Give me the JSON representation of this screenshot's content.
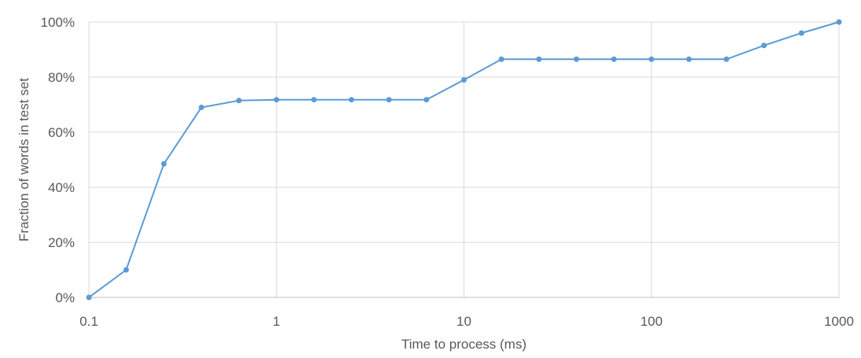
{
  "chart_data": {
    "type": "line",
    "xlabel": "Time to process (ms)",
    "ylabel": "Fraction of words in test set",
    "x_scale": "log",
    "xlim": [
      0.1,
      1000
    ],
    "ylim": [
      0,
      1
    ],
    "x_ticks": [
      {
        "value": 0.1,
        "label": "0.1"
      },
      {
        "value": 1,
        "label": "1"
      },
      {
        "value": 10,
        "label": "10"
      },
      {
        "value": 100,
        "label": "100"
      },
      {
        "value": 1000,
        "label": "1000"
      }
    ],
    "y_ticks": [
      {
        "value": 0,
        "label": "0%"
      },
      {
        "value": 0.2,
        "label": "20%"
      },
      {
        "value": 0.4,
        "label": "40%"
      },
      {
        "value": 0.6,
        "label": "60%"
      },
      {
        "value": 0.8,
        "label": "80%"
      },
      {
        "value": 1.0,
        "label": "100%"
      }
    ],
    "grid": true,
    "series": [
      {
        "color": "#5b9bd5",
        "x": [
          0.1,
          0.158,
          0.251,
          0.398,
          0.631,
          1,
          1.585,
          2.512,
          3.981,
          6.31,
          10,
          15.85,
          25.12,
          39.81,
          63.1,
          100,
          158.5,
          251.2,
          398.1,
          631,
          1000
        ],
        "y": [
          0,
          0.1,
          0.485,
          0.69,
          0.715,
          0.718,
          0.718,
          0.718,
          0.718,
          0.718,
          0.79,
          0.865,
          0.865,
          0.865,
          0.865,
          0.865,
          0.865,
          0.865,
          0.915,
          0.96,
          1.0
        ]
      }
    ]
  }
}
